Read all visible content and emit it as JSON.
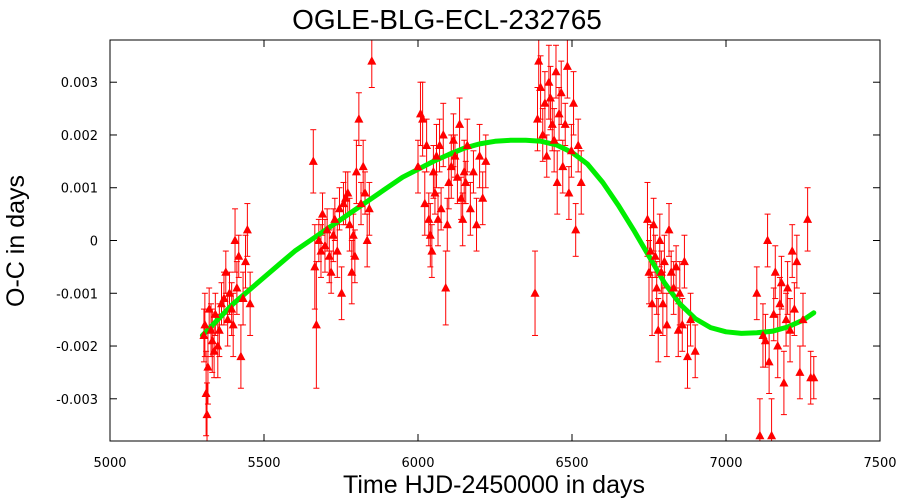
{
  "chart_data": {
    "type": "scatter",
    "title": "OGLE-BLG-ECL-232765",
    "xlabel": "Time HJD-2450000 in days",
    "ylabel": "O-C in days",
    "xlim": [
      5000,
      7500
    ],
    "ylim": [
      -0.0038,
      0.0038
    ],
    "x_ticks": [
      5000,
      5500,
      6000,
      6500,
      7000,
      7500
    ],
    "y_ticks": [
      -0.003,
      -0.002,
      -0.001,
      0,
      0.001,
      0.002,
      0.003
    ],
    "y_tick_labels": [
      "-0.003",
      "-0.002",
      "-0.001",
      "0",
      "0.001",
      "0.002",
      "0.003"
    ],
    "grid": false,
    "series": [
      {
        "type": "scatter-errorbars",
        "marker": "triangle",
        "color": "#ff0000",
        "points": [
          [
            5305,
            -0.0018,
            0.0005
          ],
          [
            5308,
            -0.0016,
            0.0006
          ],
          [
            5312,
            -0.0029,
            0.0008
          ],
          [
            5315,
            -0.0033,
            0.0006
          ],
          [
            5318,
            -0.0024,
            0.0007
          ],
          [
            5322,
            -0.0013,
            0.0004
          ],
          [
            5328,
            -0.0017,
            0.0005
          ],
          [
            5332,
            -0.0019,
            0.0006
          ],
          [
            5338,
            -0.0021,
            0.0005
          ],
          [
            5342,
            -0.0014,
            0.0004
          ],
          [
            5350,
            -0.002,
            0.0006
          ],
          [
            5355,
            -0.0017,
            0.0005
          ],
          [
            5362,
            -0.0012,
            0.0004
          ],
          [
            5370,
            -0.0011,
            0.0005
          ],
          [
            5376,
            -0.0006,
            0.0004
          ],
          [
            5382,
            -0.0015,
            0.0005
          ],
          [
            5388,
            -0.001,
            0.0004
          ],
          [
            5395,
            -0.0013,
            0.0005
          ],
          [
            5400,
            -0.0016,
            0.0006
          ],
          [
            5406,
            0.0,
            0.0006
          ],
          [
            5412,
            -0.0009,
            0.0005
          ],
          [
            5418,
            -0.0003,
            0.0004
          ],
          [
            5425,
            -0.0022,
            0.0006
          ],
          [
            5432,
            -0.0011,
            0.0005
          ],
          [
            5440,
            -0.0004,
            0.0005
          ],
          [
            5446,
            0.0002,
            0.0005
          ],
          [
            5455,
            -0.0012,
            0.0006
          ],
          [
            5660,
            0.0015,
            0.0006
          ],
          [
            5665,
            -0.0005,
            0.0008
          ],
          [
            5670,
            -0.0016,
            0.0012
          ],
          [
            5678,
            0.0,
            0.0004
          ],
          [
            5685,
            -0.0002,
            0.0005
          ],
          [
            5690,
            0.0005,
            0.0004
          ],
          [
            5698,
            -0.0001,
            0.0005
          ],
          [
            5705,
            0.0002,
            0.0004
          ],
          [
            5712,
            -0.0003,
            0.0005
          ],
          [
            5718,
            -0.0006,
            0.0004
          ],
          [
            5725,
            0.0001,
            0.0005
          ],
          [
            5730,
            0.0004,
            0.0004
          ],
          [
            5738,
            -0.0002,
            0.0005
          ],
          [
            5745,
            0.0006,
            0.0004
          ],
          [
            5752,
            -0.001,
            0.0005
          ],
          [
            5758,
            0.0007,
            0.0004
          ],
          [
            5765,
            0.0008,
            0.0005
          ],
          [
            5772,
            0.0009,
            0.0004
          ],
          [
            5778,
            0.0003,
            0.0005
          ],
          [
            5785,
            -0.0006,
            0.0006
          ],
          [
            5790,
            0.0001,
            0.0004
          ],
          [
            5795,
            -0.0003,
            0.0005
          ],
          [
            5800,
            0.0013,
            0.0006
          ],
          [
            5808,
            0.0023,
            0.0005
          ],
          [
            5815,
            0.0007,
            0.0004
          ],
          [
            5822,
            0.0014,
            0.0005
          ],
          [
            5828,
            0.0009,
            0.0004
          ],
          [
            5835,
            0.0,
            0.0005
          ],
          [
            5842,
            0.0006,
            0.0005
          ],
          [
            5850,
            0.0034,
            0.0005
          ],
          [
            6000,
            0.0014,
            0.0005
          ],
          [
            6008,
            0.0024,
            0.0006
          ],
          [
            6015,
            0.0023,
            0.0007
          ],
          [
            6022,
            0.0007,
            0.0006
          ],
          [
            6028,
            0.0018,
            0.0005
          ],
          [
            6035,
            0.0004,
            0.0005
          ],
          [
            6040,
            0.0001,
            0.0006
          ],
          [
            6045,
            -0.0002,
            0.0005
          ],
          [
            6050,
            0.0013,
            0.0005
          ],
          [
            6055,
            0.0009,
            0.0004
          ],
          [
            6060,
            0.0016,
            0.0006
          ],
          [
            6065,
            0.0004,
            0.0005
          ],
          [
            6070,
            0.0018,
            0.0005
          ],
          [
            6075,
            0.0006,
            0.0004
          ],
          [
            6082,
            0.002,
            0.0006
          ],
          [
            6090,
            -0.0009,
            0.0007
          ],
          [
            6095,
            0.0003,
            0.0005
          ],
          [
            6100,
            0.0011,
            0.0005
          ],
          [
            6108,
            0.0014,
            0.0006
          ],
          [
            6115,
            0.0019,
            0.0005
          ],
          [
            6120,
            0.0016,
            0.0004
          ],
          [
            6128,
            0.0012,
            0.0005
          ],
          [
            6135,
            0.0022,
            0.0005
          ],
          [
            6140,
            0.0008,
            0.0004
          ],
          [
            6145,
            0.0004,
            0.0005
          ],
          [
            6150,
            0.0013,
            0.0006
          ],
          [
            6155,
            0.0011,
            0.0004
          ],
          [
            6160,
            0.0018,
            0.0005
          ],
          [
            6170,
            0.0006,
            0.0005
          ],
          [
            6180,
            0.0013,
            0.0004
          ],
          [
            6190,
            0.0003,
            0.0005
          ],
          [
            6200,
            0.0016,
            0.0006
          ],
          [
            6210,
            0.0008,
            0.0005
          ],
          [
            6220,
            0.0015,
            0.0005
          ],
          [
            6380,
            -0.001,
            0.0008
          ],
          [
            6388,
            0.0023,
            0.0006
          ],
          [
            6392,
            0.0034,
            0.0005
          ],
          [
            6398,
            0.0029,
            0.0006
          ],
          [
            6405,
            0.002,
            0.0005
          ],
          [
            6412,
            0.0026,
            0.0006
          ],
          [
            6418,
            0.0016,
            0.0004
          ],
          [
            6425,
            0.003,
            0.0007
          ],
          [
            6430,
            0.0027,
            0.0006
          ],
          [
            6436,
            0.0022,
            0.0005
          ],
          [
            6442,
            0.0019,
            0.0006
          ],
          [
            6448,
            0.0032,
            0.0005
          ],
          [
            6452,
            0.0011,
            0.0006
          ],
          [
            6458,
            0.0024,
            0.0005
          ],
          [
            6465,
            0.0028,
            0.0006
          ],
          [
            6470,
            0.0014,
            0.0005
          ],
          [
            6478,
            0.0022,
            0.0004
          ],
          [
            6485,
            0.0033,
            0.0006
          ],
          [
            6490,
            0.0009,
            0.0005
          ],
          [
            6498,
            0.0017,
            0.0005
          ],
          [
            6505,
            0.0026,
            0.0006
          ],
          [
            6512,
            0.0002,
            0.0005
          ],
          [
            6520,
            0.0018,
            0.0005
          ],
          [
            6530,
            0.0011,
            0.0006
          ],
          [
            6745,
            0.0004,
            0.0007
          ],
          [
            6750,
            -0.0006,
            0.0006
          ],
          [
            6755,
            -0.0002,
            0.0005
          ],
          [
            6760,
            -0.0012,
            0.0006
          ],
          [
            6765,
            0.0003,
            0.0005
          ],
          [
            6770,
            -0.0003,
            0.0004
          ],
          [
            6775,
            -0.0009,
            0.0005
          ],
          [
            6780,
            -0.0017,
            0.0006
          ],
          [
            6785,
            0.0,
            0.0005
          ],
          [
            6790,
            -0.0006,
            0.0004
          ],
          [
            6795,
            -0.0012,
            0.0006
          ],
          [
            6800,
            -0.0004,
            0.0005
          ],
          [
            6808,
            -0.0016,
            0.0006
          ],
          [
            6815,
            0.0002,
            0.0005
          ],
          [
            6822,
            -0.0006,
            0.0004
          ],
          [
            6830,
            -0.0009,
            0.0005
          ],
          [
            6838,
            -0.0005,
            0.0004
          ],
          [
            6845,
            -0.0017,
            0.0005
          ],
          [
            6850,
            -0.001,
            0.0006
          ],
          [
            6858,
            -0.0016,
            0.0005
          ],
          [
            6865,
            -0.0004,
            0.0005
          ],
          [
            6875,
            -0.0022,
            0.0006
          ],
          [
            6885,
            -0.0015,
            0.0005
          ],
          [
            6900,
            -0.0021,
            0.0005
          ],
          [
            7100,
            -0.001,
            0.0005
          ],
          [
            7110,
            -0.0037,
            0.0007
          ],
          [
            7120,
            -0.0018,
            0.0006
          ],
          [
            7128,
            -0.0019,
            0.0005
          ],
          [
            7135,
            0.0,
            0.0005
          ],
          [
            7140,
            -0.0023,
            0.0006
          ],
          [
            7148,
            -0.0037,
            0.0007
          ],
          [
            7155,
            -0.0014,
            0.0005
          ],
          [
            7160,
            -0.0006,
            0.0005
          ],
          [
            7168,
            -0.002,
            0.0006
          ],
          [
            7175,
            -0.0012,
            0.0005
          ],
          [
            7180,
            -0.0008,
            0.0005
          ],
          [
            7188,
            -0.0027,
            0.0006
          ],
          [
            7195,
            -0.0015,
            0.0005
          ],
          [
            7200,
            -0.0009,
            0.0005
          ],
          [
            7208,
            -0.0017,
            0.0006
          ],
          [
            7215,
            -0.0002,
            0.0005
          ],
          [
            7222,
            -0.0013,
            0.0005
          ],
          [
            7230,
            -0.0004,
            0.0005
          ],
          [
            7240,
            -0.0025,
            0.0005
          ],
          [
            7250,
            -0.0015,
            0.0005
          ],
          [
            7265,
            0.0004,
            0.0006
          ],
          [
            7275,
            -0.0026,
            0.0005
          ],
          [
            7285,
            -0.0026,
            0.0004
          ]
        ]
      },
      {
        "type": "fit-line",
        "color": "#00ee00",
        "points": [
          [
            5300,
            -0.0018
          ],
          [
            5350,
            -0.0015
          ],
          [
            5400,
            -0.0012
          ],
          [
            5450,
            -0.00095
          ],
          [
            5500,
            -0.0007
          ],
          [
            5550,
            -0.00045
          ],
          [
            5600,
            -0.0002
          ],
          [
            5650,
            0.0
          ],
          [
            5700,
            0.0002
          ],
          [
            5750,
            0.0004
          ],
          [
            5800,
            0.0006
          ],
          [
            5850,
            0.0008
          ],
          [
            5900,
            0.001
          ],
          [
            5950,
            0.0012
          ],
          [
            6000,
            0.00135
          ],
          [
            6050,
            0.0015
          ],
          [
            6100,
            0.00163
          ],
          [
            6150,
            0.00175
          ],
          [
            6200,
            0.00183
          ],
          [
            6250,
            0.00188
          ],
          [
            6300,
            0.0019
          ],
          [
            6350,
            0.0019
          ],
          [
            6400,
            0.00188
          ],
          [
            6450,
            0.00181
          ],
          [
            6500,
            0.00167
          ],
          [
            6550,
            0.00145
          ],
          [
            6600,
            0.0011
          ],
          [
            6650,
            0.00067
          ],
          [
            6700,
            0.0002
          ],
          [
            6750,
            -0.0003
          ],
          [
            6800,
            -0.0008
          ],
          [
            6850,
            -0.0012
          ],
          [
            6900,
            -0.00148
          ],
          [
            6950,
            -0.00165
          ],
          [
            7000,
            -0.00173
          ],
          [
            7050,
            -0.00176
          ],
          [
            7100,
            -0.00175
          ],
          [
            7150,
            -0.00172
          ],
          [
            7200,
            -0.00164
          ],
          [
            7250,
            -0.00151
          ],
          [
            7285,
            -0.00137
          ]
        ]
      }
    ]
  }
}
